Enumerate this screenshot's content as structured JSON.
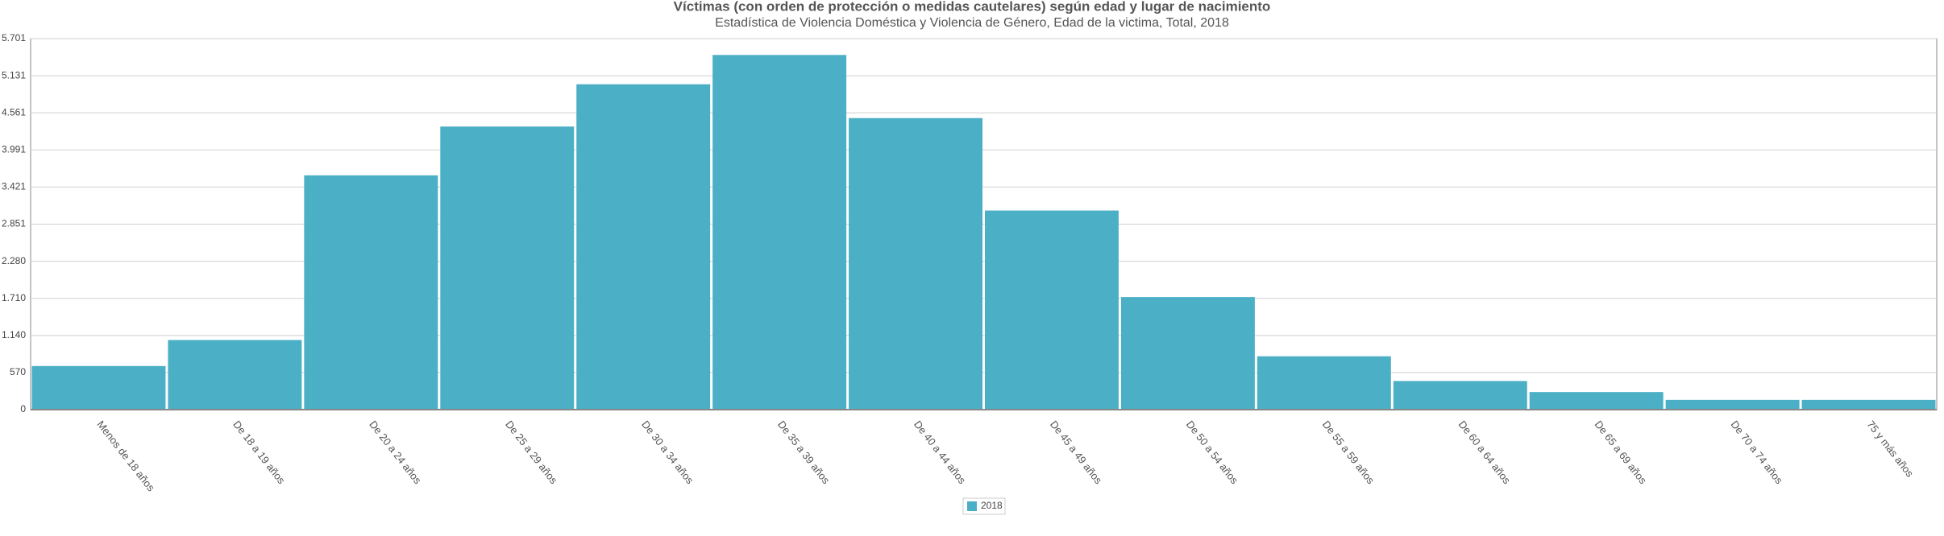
{
  "chart_data": {
    "type": "bar",
    "title": "Víctimas (con orden de protección o medidas cautelares) según edad y lugar de nacimiento",
    "subtitle": "Estadística de Violencia Doméstica y Violencia de Género, Edad de la victima, Total, 2018",
    "categories": [
      "Menos de 18 años",
      "De 18 a 19 años",
      "De 20 a 24 años",
      "De 25 a 29 años",
      "De 30 a 34 años",
      "De 35 a 39 años",
      "De 40 a 44 años",
      "De 45 a 49 años",
      "De 50 a 54 años",
      "De 55 a 59 años",
      "De 60 a 64 años",
      "De 65 a 69 años",
      "De 70 a 74 años",
      "75 y más años"
    ],
    "series": [
      {
        "name": "2018",
        "color": "#4bafc5",
        "values": [
          670,
          1070,
          3600,
          4350,
          5000,
          5450,
          4480,
          3060,
          1730,
          820,
          440,
          270,
          150,
          150
        ]
      }
    ],
    "ylim": [
      0,
      5701
    ],
    "yticks": [
      0,
      570,
      {
        "value": 1140,
        "label": "1.140"
      },
      {
        "value": 1710,
        "label": "1.710"
      },
      {
        "value": 2280,
        "label": "2.280"
      },
      {
        "value": 2851,
        "label": "2.851"
      },
      {
        "value": 3421,
        "label": "3.421"
      },
      {
        "value": 3991,
        "label": "3.991"
      },
      {
        "value": 4561,
        "label": "4.561"
      },
      {
        "value": 5131,
        "label": "5.131"
      },
      {
        "value": 5701,
        "label": "5.701"
      }
    ],
    "grid": true,
    "legend": "bottom"
  }
}
